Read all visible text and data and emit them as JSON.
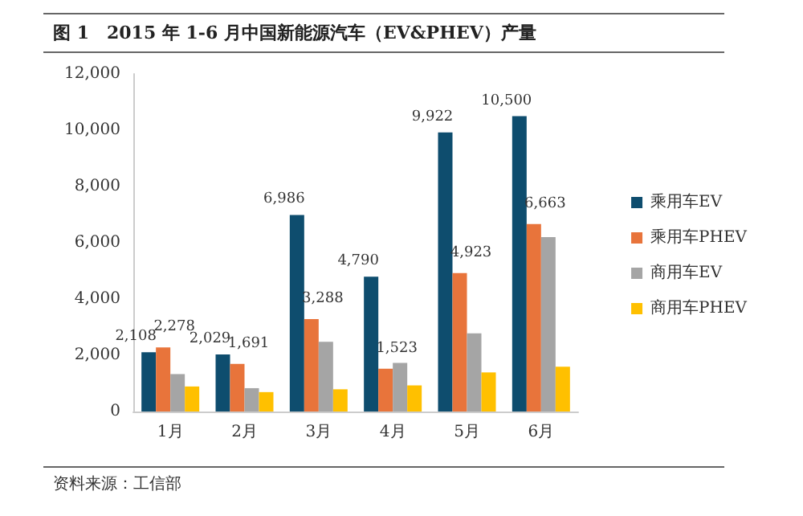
{
  "chart_data": {
    "type": "bar",
    "title": "图 1　2015 年 1-6 月中国新能源汽车（EV&PHEV）产量",
    "annotations": [
      "资料来源：工信部"
    ],
    "categories": [
      "1月",
      "2月",
      "3月",
      "4月",
      "5月",
      "6月"
    ],
    "series": [
      {
        "name": "乘用车EV",
        "color": "#0e4d6e",
        "values": [
          2108,
          2029,
          6986,
          4790,
          9922,
          10500
        ],
        "value_labels": [
          "2,108",
          "2,029",
          "6,986",
          "4,790",
          "9,922",
          "10,500"
        ]
      },
      {
        "name": "乘用车PHEV",
        "color": "#e8743b",
        "values": [
          2278,
          1691,
          3288,
          1523,
          4923,
          6663
        ],
        "value_labels": [
          "2,278",
          "1,691",
          "3,288",
          "1,523",
          "4,923",
          "6,663"
        ]
      },
      {
        "name": "商用车EV",
        "color": "#a5a5a5",
        "values": [
          1330,
          830,
          2480,
          1730,
          2780,
          6200
        ]
      },
      {
        "name": "商用车PHEV",
        "color": "#ffc000",
        "values": [
          890,
          690,
          790,
          930,
          1390,
          1590
        ]
      }
    ],
    "ylim": [
      0,
      12000
    ],
    "yticks": [
      {
        "value": 0,
        "label": "0"
      },
      {
        "value": 2000,
        "label": "2,000"
      },
      {
        "value": 4000,
        "label": "4,000"
      },
      {
        "value": 6000,
        "label": "6,000"
      },
      {
        "value": 8000,
        "label": "8,000"
      },
      {
        "value": 10000,
        "label": "10,000"
      },
      {
        "value": 12000,
        "label": "12,000"
      }
    ],
    "grid": false,
    "legend": "right"
  }
}
